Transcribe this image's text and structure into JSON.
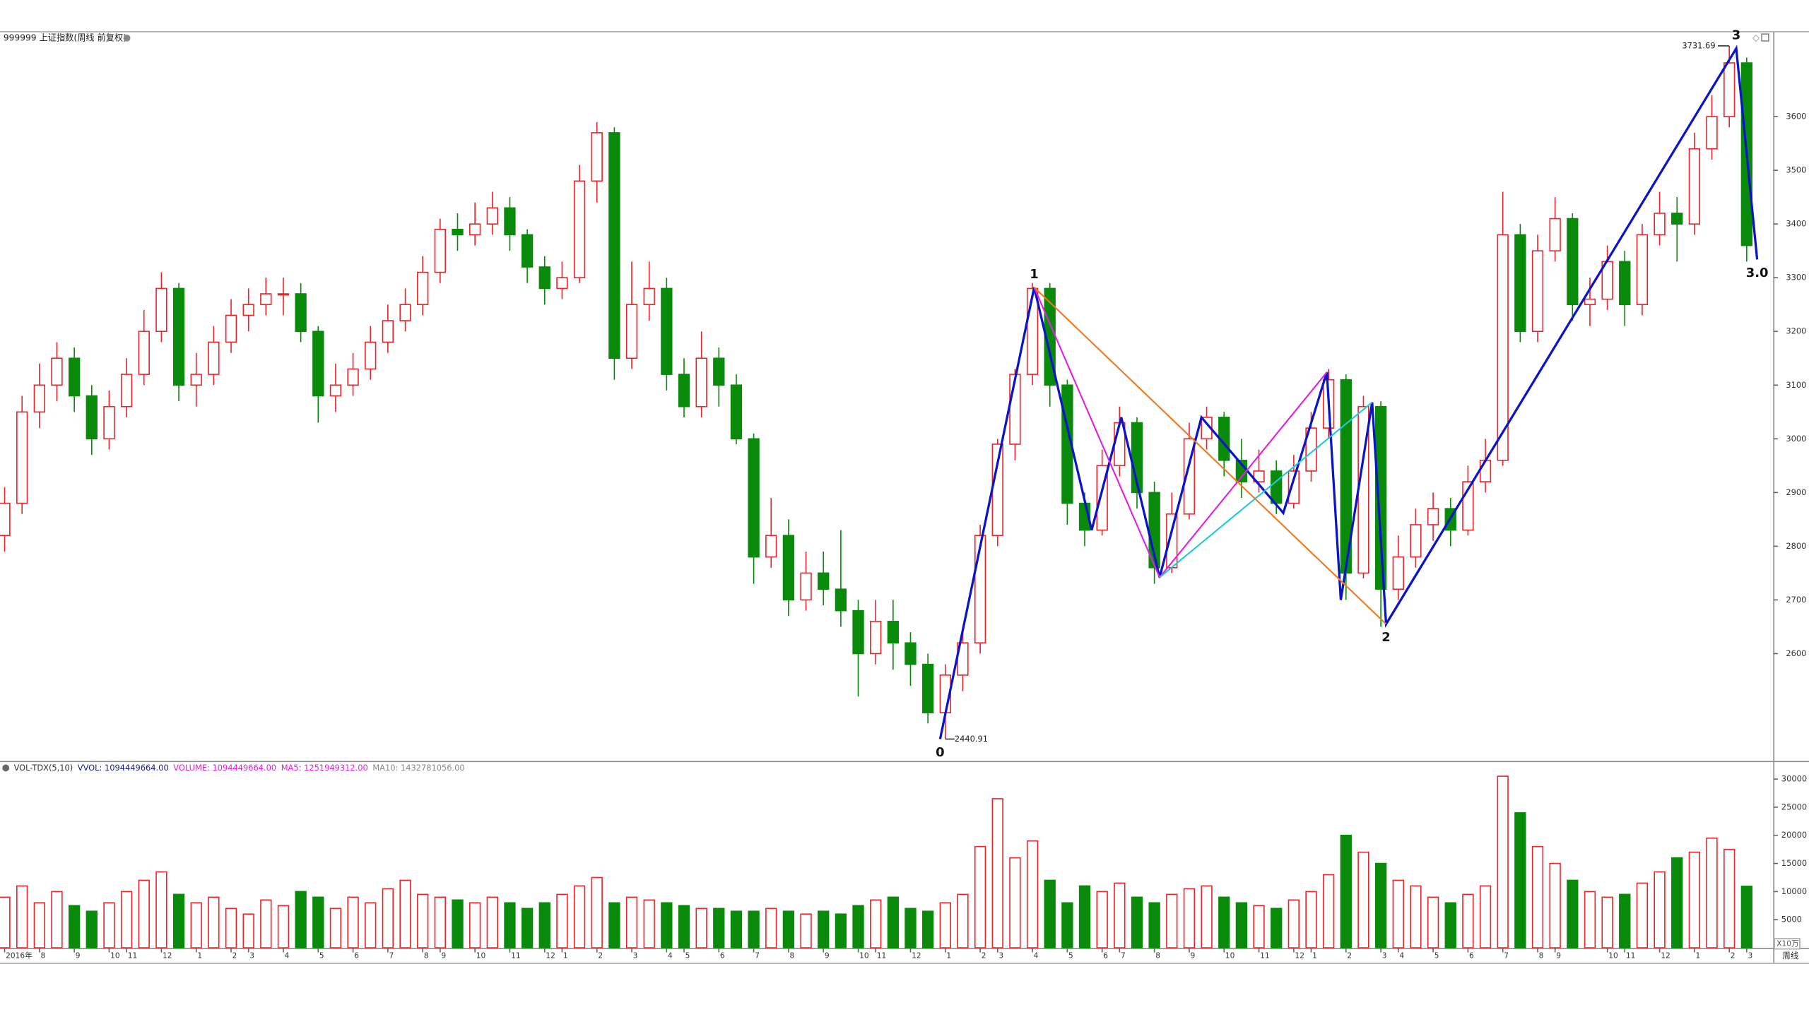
{
  "chart_data": {
    "type": "candlestick",
    "title": "999999 上证指数(周线 前复权)",
    "period_label": "周线",
    "up_color": "#e8262b",
    "down_color": "#0a8a0a",
    "categories": [
      "2016年",
      null,
      "8",
      null,
      "9",
      null,
      "10",
      "11",
      null,
      "12",
      null,
      "1",
      null,
      "2",
      "3",
      null,
      "4",
      null,
      "5",
      null,
      "6",
      null,
      "7",
      null,
      "8",
      "9",
      null,
      "10",
      null,
      "11",
      null,
      "12",
      "1",
      null,
      "2",
      null,
      "3",
      null,
      "4",
      "5",
      null,
      "6",
      null,
      "7",
      null,
      "8",
      null,
      "9",
      null,
      "10",
      "11",
      null,
      "12",
      null,
      "1",
      null,
      "2",
      "3",
      null,
      "4",
      null,
      "5",
      null,
      "6",
      "7",
      null,
      "8",
      null,
      "9",
      null,
      "10",
      null,
      "11",
      null,
      "12",
      "1",
      null,
      "2",
      null,
      "3",
      "4",
      null,
      "5",
      null,
      "6",
      null,
      "7",
      null,
      "8",
      "9",
      null,
      null,
      "10",
      "11",
      null,
      "12",
      null,
      "1",
      null,
      "2",
      "3"
    ],
    "open": [
      2820,
      2880,
      3050,
      3100,
      3150,
      3080,
      3000,
      3060,
      3120,
      3200,
      3280,
      3100,
      3120,
      3180,
      3230,
      3250,
      3270,
      3270,
      3200,
      3080,
      3100,
      3130,
      3180,
      3220,
      3250,
      3310,
      3390,
      3380,
      3400,
      3430,
      3380,
      3320,
      3280,
      3300,
      3480,
      3570,
      3150,
      3250,
      3280,
      3120,
      3060,
      3150,
      3100,
      3000,
      2780,
      2820,
      2700,
      2750,
      2720,
      2680,
      2600,
      2660,
      2620,
      2580,
      2490,
      2560,
      2620,
      2820,
      2990,
      3120,
      3280,
      3100,
      2880,
      2830,
      2950,
      3030,
      2900,
      2760,
      2860,
      3000,
      3040,
      2960,
      2920,
      2940,
      2880,
      2940,
      3020,
      3110,
      2750,
      3060,
      2720,
      2780,
      2840,
      2870,
      2830,
      2920,
      2960,
      3380,
      3200,
      3350,
      3410,
      3250,
      3260,
      3330,
      3250,
      3380,
      3420,
      3400,
      3540,
      3600,
      3700
    ],
    "high": [
      2910,
      3080,
      3140,
      3180,
      3170,
      3100,
      3090,
      3150,
      3240,
      3310,
      3290,
      3160,
      3210,
      3260,
      3280,
      3300,
      3300,
      3290,
      3210,
      3140,
      3160,
      3210,
      3250,
      3280,
      3340,
      3410,
      3420,
      3440,
      3460,
      3450,
      3390,
      3340,
      3330,
      3510,
      3590,
      3580,
      3330,
      3330,
      3300,
      3150,
      3200,
      3170,
      3120,
      3010,
      2890,
      2850,
      2790,
      2790,
      2830,
      2700,
      2700,
      2700,
      2640,
      2600,
      2580,
      2650,
      2840,
      3000,
      3130,
      3290,
      3290,
      3110,
      2900,
      2980,
      3060,
      3040,
      2920,
      2900,
      3030,
      3060,
      3050,
      3000,
      2980,
      2960,
      2970,
      3050,
      3130,
      3120,
      3080,
      3070,
      2820,
      2870,
      2900,
      2890,
      2950,
      3000,
      3460,
      3400,
      3380,
      3450,
      3420,
      3300,
      3360,
      3350,
      3400,
      3460,
      3450,
      3570,
      3640,
      3731.69,
      3710
    ],
    "low": [
      2790,
      2860,
      3020,
      3070,
      3050,
      2970,
      2980,
      3040,
      3100,
      3180,
      3070,
      3060,
      3100,
      3160,
      3200,
      3230,
      3230,
      3180,
      3030,
      3050,
      3080,
      3110,
      3160,
      3200,
      3230,
      3290,
      3350,
      3360,
      3380,
      3350,
      3290,
      3250,
      3260,
      3290,
      3440,
      3110,
      3130,
      3220,
      3090,
      3040,
      3040,
      3060,
      2990,
      2730,
      2760,
      2670,
      2680,
      2690,
      2650,
      2520,
      2580,
      2570,
      2540,
      2470,
      2440.91,
      2530,
      2600,
      2800,
      2960,
      3100,
      3060,
      2840,
      2800,
      2820,
      2930,
      2870,
      2730,
      2750,
      2850,
      2980,
      2930,
      2890,
      2900,
      2860,
      2870,
      2920,
      3000,
      2700,
      2740,
      2650,
      2700,
      2760,
      2810,
      2800,
      2820,
      2900,
      2950,
      3180,
      3180,
      3330,
      3220,
      3210,
      3240,
      3210,
      3230,
      3360,
      3330,
      3380,
      3520,
      3580,
      3330
    ],
    "close": [
      2880,
      3050,
      3100,
      3150,
      3080,
      3000,
      3060,
      3120,
      3200,
      3280,
      3100,
      3120,
      3180,
      3230,
      3250,
      3270,
      3270,
      3200,
      3080,
      3100,
      3130,
      3180,
      3220,
      3250,
      3310,
      3390,
      3380,
      3400,
      3430,
      3380,
      3320,
      3280,
      3300,
      3480,
      3570,
      3150,
      3250,
      3280,
      3120,
      3060,
      3150,
      3100,
      3000,
      2780,
      2820,
      2700,
      2750,
      2720,
      2680,
      2600,
      2660,
      2620,
      2580,
      2490,
      2560,
      2620,
      2820,
      2990,
      3120,
      3280,
      3100,
      2880,
      2830,
      2950,
      3030,
      2900,
      2760,
      2860,
      3000,
      3040,
      2960,
      2920,
      2940,
      2880,
      2940,
      3020,
      3110,
      2750,
      3060,
      2720,
      2780,
      2840,
      2870,
      2830,
      2920,
      2960,
      3380,
      3200,
      3350,
      3410,
      3250,
      3260,
      3330,
      3250,
      3380,
      3420,
      3400,
      3540,
      3600,
      3700,
      3360
    ],
    "ylim": [
      2400,
      3757
    ],
    "yticks": [
      2600,
      2700,
      2800,
      2900,
      3000,
      3100,
      3200,
      3300,
      3400,
      3500,
      3600
    ],
    "overlays": [
      {
        "color": "#0a14c8",
        "points_x": [
          53.7,
          59.1,
          62.4,
          64.1,
          66.3,
          68.7,
          73.4,
          75.9,
          76.7,
          78.5,
          79.3,
          99.4,
          100.6
        ],
        "points_y": [
          2441,
          3282,
          2830,
          3040,
          2742,
          3040,
          2862,
          3124,
          2700,
          3068,
          2655,
          3727,
          3334
        ],
        "point_labels": [
          "0",
          "1",
          null,
          null,
          null,
          null,
          null,
          null,
          null,
          null,
          "2",
          "3",
          "3.0"
        ]
      },
      {
        "color": "#e020e0",
        "points_x": [
          59.1,
          66.3,
          75.9
        ],
        "points_y": [
          3282,
          2742,
          3124
        ]
      },
      {
        "color": "#20c8d8",
        "points_x": [
          66.3,
          78.5
        ],
        "points_y": [
          2742,
          3068
        ]
      },
      {
        "color": "#f07820",
        "points_x": [
          59.1,
          79.3
        ],
        "points_y": [
          3282,
          2655
        ]
      }
    ],
    "volume": {
      "header": [
        {
          "text": "VOL-TDX(5,10)",
          "color": "#333333"
        },
        {
          "text": "VVOL: 1094449664.00",
          "color": "#1a1a8c"
        },
        {
          "text": "VOLUME: 1094449664.00",
          "color": "#e020e0"
        },
        {
          "text": "MA5: 1251949312.00",
          "color": "#e020e0"
        },
        {
          "text": "MA10: 1432781056.00",
          "color": "#888888"
        }
      ],
      "unit_label": "X10万",
      "values": [
        9000,
        11000,
        8000,
        10000,
        7500,
        6500,
        8000,
        10000,
        12000,
        13500,
        9500,
        8000,
        9000,
        7000,
        6000,
        8500,
        7500,
        10000,
        9000,
        7000,
        9000,
        8000,
        10500,
        12000,
        9500,
        9000,
        8500,
        8000,
        9000,
        8000,
        7000,
        8000,
        9500,
        11000,
        12500,
        8000,
        9000,
        8500,
        8000,
        7500,
        7000,
        7000,
        6500,
        6500,
        7000,
        6500,
        6000,
        6500,
        6000,
        7500,
        8500,
        9000,
        7000,
        6500,
        8000,
        9500,
        18000,
        26500,
        16000,
        19000,
        12000,
        8000,
        11000,
        10000,
        11500,
        9000,
        8000,
        9500,
        10500,
        11000,
        9000,
        8000,
        7500,
        7000,
        8500,
        10000,
        13000,
        20000,
        17000,
        15000,
        12000,
        11000,
        9000,
        8000,
        9500,
        11000,
        30500,
        24000,
        18000,
        15000,
        12000,
        10000,
        9000,
        9500,
        11500,
        13500,
        16000,
        17000,
        19500,
        17500,
        10944
      ],
      "ylim": [
        0,
        33000
      ],
      "yticks": [
        5000,
        10000,
        15000,
        20000,
        25000,
        30000
      ]
    }
  }
}
